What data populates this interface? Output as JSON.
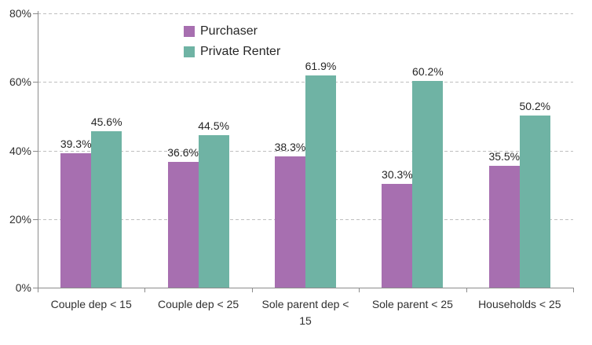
{
  "chart_data": {
    "type": "bar",
    "title": "",
    "xlabel": "",
    "ylabel": "",
    "categories": [
      "Couple dep < 15",
      "Couple dep < 25",
      "Sole parent dep < 15",
      "Sole parent < 25",
      "Households < 25"
    ],
    "series": [
      {
        "name": "Purchaser",
        "color": "#a76fb0",
        "values": [
          39.3,
          36.6,
          38.3,
          30.3,
          35.5
        ]
      },
      {
        "name": "Private Renter",
        "color": "#6fb3a4",
        "values": [
          45.6,
          44.5,
          61.9,
          60.2,
          50.2
        ]
      }
    ],
    "data_labels": [
      [
        "39.3%",
        "36.6%",
        "38.3%",
        "30.3%",
        "35.5%"
      ],
      [
        "45.6%",
        "44.5%",
        "61.9%",
        "60.2%",
        "50.2%"
      ]
    ],
    "ylim": [
      0,
      80
    ],
    "ytick_step": 20,
    "ytick_labels": [
      "0%",
      "20%",
      "40%",
      "60%",
      "80%"
    ],
    "value_suffix": "%",
    "grid": "horizontal-dashed",
    "legend_position": "top-inside-left-of-center"
  },
  "colors": {
    "axis": "#8c8c8c",
    "gridline": "#bfbfbf",
    "text": "#262626",
    "background": "#ffffff"
  }
}
